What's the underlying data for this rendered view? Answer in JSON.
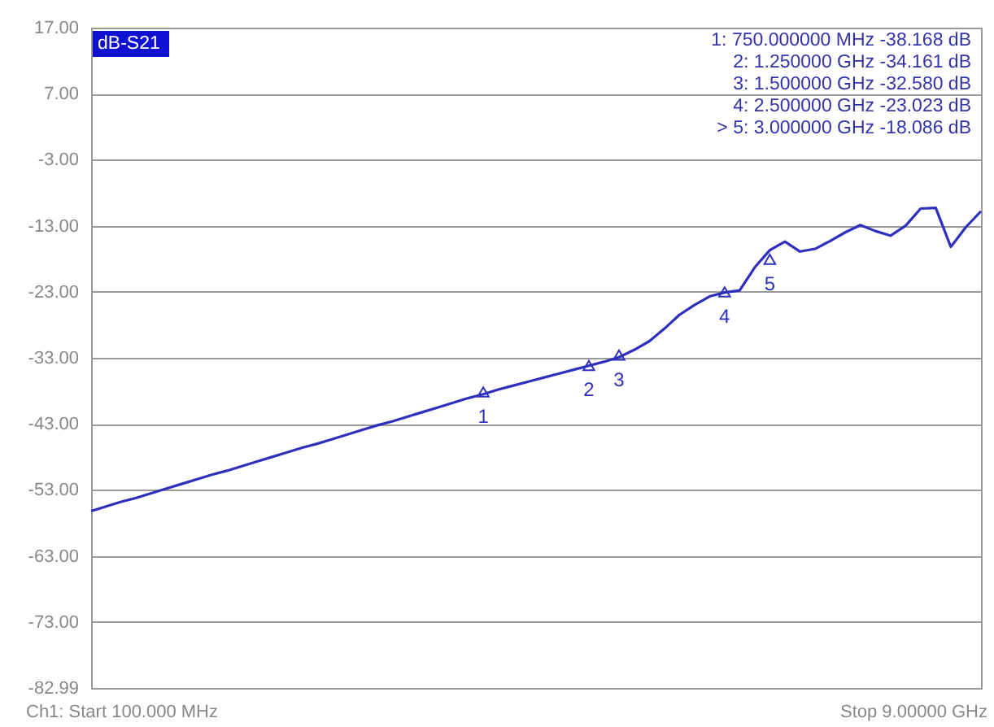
{
  "chart_data": {
    "type": "line",
    "annotations": [
      "dB-S21",
      "1:  750.000000 MHz   -38.168 dB",
      "2:  1.250000 GHz   -34.161 dB",
      "3:  1.500000 GHz   -32.580 dB",
      "4:  2.500000 GHz   -23.023 dB",
      "> 5:  3.000000 GHz   -18.086 dB",
      "Ch1: Start  100.000 MHz",
      "Stop  9.00000 GHz",
      "1",
      "2",
      "3",
      "4",
      "5"
    ],
    "categories": [
      null,
      null,
      null,
      null,
      null,
      null,
      null,
      null,
      null,
      null,
      null,
      null,
      null,
      null,
      null,
      null,
      null,
      null,
      null,
      null,
      null,
      null,
      null,
      null,
      null,
      null,
      null,
      null,
      null,
      null,
      null,
      null,
      null,
      null,
      null,
      null,
      null,
      null,
      null,
      null,
      null,
      null,
      null,
      null,
      null,
      null,
      null,
      null,
      null,
      null,
      null,
      null,
      null,
      null,
      null,
      null,
      null,
      null,
      null,
      null
    ],
    "series": [
      {
        "color": "#2f2fbf",
        "values": [
          -56.2,
          -55.5,
          -54.8,
          -54.2,
          -53.5,
          -52.8,
          -52.1,
          -51.4,
          -50.7,
          -50.1,
          -49.4,
          -48.7,
          -48.0,
          -47.3,
          -46.6,
          -46.0,
          -45.3,
          -44.6,
          -43.9,
          -43.2,
          -42.6,
          -41.9,
          -41.2,
          -40.5,
          -39.8,
          -39.1,
          -38.5,
          -37.8,
          -37.2,
          -36.6,
          -36.0,
          -35.4,
          -34.8,
          -34.2,
          -33.6,
          -32.9,
          -31.8,
          -30.5,
          -28.6,
          -26.5,
          -25.0,
          -23.7,
          -23.1,
          -22.8,
          -19.3,
          -16.7,
          -15.4,
          -16.9,
          -16.5,
          -15.3,
          -14.0,
          -12.9,
          -13.8,
          -14.5,
          -13.0,
          -10.4,
          -10.3,
          -16.2,
          -13.2,
          -10.8
        ]
      },
      {
        "type": "scatter",
        "color": "#2f2fbf",
        "marker": "triangle",
        "values": [
          null,
          null,
          null,
          null,
          null,
          null,
          null,
          null,
          null,
          null,
          null,
          null,
          null,
          null,
          null,
          null,
          null,
          null,
          null,
          null,
          null,
          null,
          null,
          null,
          null,
          null,
          -38.168,
          null,
          null,
          null,
          null,
          null,
          null,
          -34.161,
          null,
          -32.58,
          null,
          null,
          null,
          null,
          null,
          null,
          -23.023,
          null,
          null,
          -18.086,
          null,
          null,
          null,
          null,
          null,
          null,
          null,
          null,
          null,
          null,
          null,
          null,
          null,
          null
        ]
      }
    ],
    "ylim": [
      -82.99,
      17.0
    ],
    "yticks": [
      {
        "value": 17,
        "label": "17.00"
      },
      {
        "value": 7,
        "label": "7.00"
      },
      {
        "value": -3,
        "label": "-3.00"
      },
      {
        "value": -13,
        "label": "-13.00"
      },
      {
        "value": -23,
        "label": "-23.00"
      },
      {
        "value": -33,
        "label": "-33.00"
      },
      {
        "value": -43,
        "label": "-43.00"
      },
      {
        "value": -53,
        "label": "-53.00"
      },
      {
        "value": -63,
        "label": "-63.00"
      },
      {
        "value": -73,
        "label": "-73.00"
      },
      {
        "value": -82.99,
        "label": "-82.99"
      }
    ],
    "grid": "y",
    "tick_labels": "y",
    "marker": "none",
    "line_style": "solid"
  }
}
